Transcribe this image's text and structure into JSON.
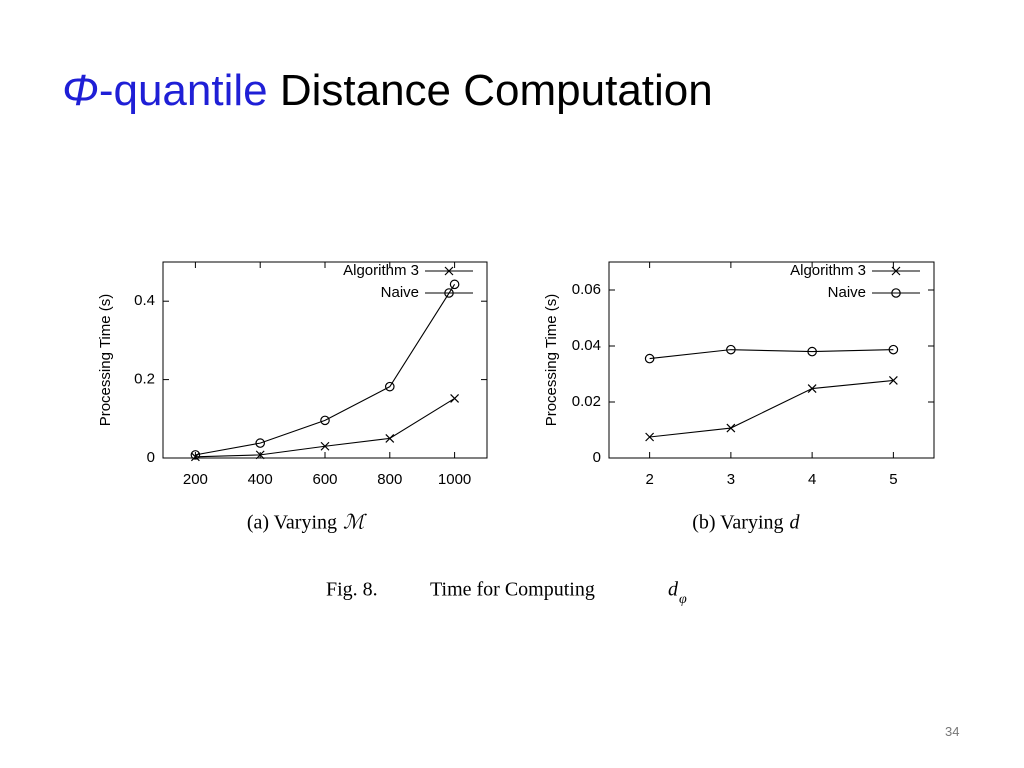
{
  "title": {
    "symbol": "Φ",
    "highlight": "-quantile",
    "rest": "Distance Computation"
  },
  "figure_caption": {
    "label": "Fig. 8.",
    "text": "Time for Computing",
    "symbol": "d",
    "subscript": "φ"
  },
  "page_number": "34",
  "chart_data": [
    {
      "type": "line",
      "caption": "(a)  Varying",
      "caption_symbol": "ℳ",
      "y_label": "Processing Time (s)",
      "x": [
        200,
        400,
        600,
        800,
        1000
      ],
      "xlim": [
        100,
        1100
      ],
      "xticks": [
        200,
        400,
        600,
        800,
        1000
      ],
      "ylim": [
        0,
        0.5
      ],
      "yticks": [
        0,
        0.2,
        0.4
      ],
      "legend": "top-right",
      "series": [
        {
          "name": "Algorithm 3",
          "color": "#000000",
          "marker": "x",
          "values": [
            0.003,
            0.008,
            0.03,
            0.05,
            0.152
          ]
        },
        {
          "name": "Naive",
          "color": "#000000",
          "marker": "o",
          "values": [
            0.008,
            0.038,
            0.096,
            0.182,
            0.443
          ]
        }
      ]
    },
    {
      "type": "line",
      "caption": "(b)  Varying",
      "caption_symbol": "d",
      "y_label": "Processing Time (s)",
      "x": [
        2,
        3,
        4,
        5
      ],
      "xlim": [
        1.5,
        5.5
      ],
      "xticks": [
        2,
        3,
        4,
        5
      ],
      "ylim": [
        0,
        0.07
      ],
      "yticks": [
        0,
        0.02,
        0.04,
        0.06
      ],
      "legend": "top-right",
      "series": [
        {
          "name": "Algorithm 3",
          "color": "#000000",
          "marker": "x",
          "values": [
            0.0075,
            0.0107,
            0.0248,
            0.0277
          ]
        },
        {
          "name": "Naive",
          "color": "#000000",
          "marker": "o",
          "values": [
            0.0355,
            0.0387,
            0.038,
            0.0387
          ]
        }
      ]
    }
  ]
}
